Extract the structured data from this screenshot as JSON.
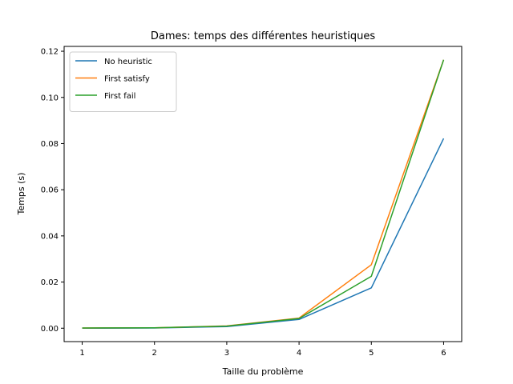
{
  "chart_data": {
    "type": "line",
    "title": "Dames: temps des différentes heuristiques",
    "xlabel": "Taille du problème",
    "ylabel": "Temps (s)",
    "x": [
      1,
      2,
      3,
      4,
      5,
      6
    ],
    "xticks": [
      1,
      2,
      3,
      4,
      5,
      6
    ],
    "xlim": [
      0.75,
      6.25
    ],
    "ylim": [
      -0.0058,
      0.1221
    ],
    "yticks": [
      0.0,
      0.02,
      0.04,
      0.06,
      0.08,
      0.1,
      0.12
    ],
    "ytick_labels": [
      "0.00",
      "0.02",
      "0.04",
      "0.06",
      "0.08",
      "0.10",
      "0.12"
    ],
    "grid": false,
    "legend_position": "top-left",
    "series": [
      {
        "name": "No heuristic",
        "color": "#1f77b4",
        "values": [
          0.0,
          0.0001,
          0.0007,
          0.0038,
          0.0175,
          0.0822
        ]
      },
      {
        "name": "First satisfy",
        "color": "#ff7f0e",
        "values": [
          0.0001,
          0.0002,
          0.001,
          0.0044,
          0.0275,
          0.1163
        ]
      },
      {
        "name": "First fail",
        "color": "#2ca02c",
        "values": [
          0.0001,
          0.0002,
          0.0009,
          0.0042,
          0.0225,
          0.1163
        ]
      }
    ]
  }
}
